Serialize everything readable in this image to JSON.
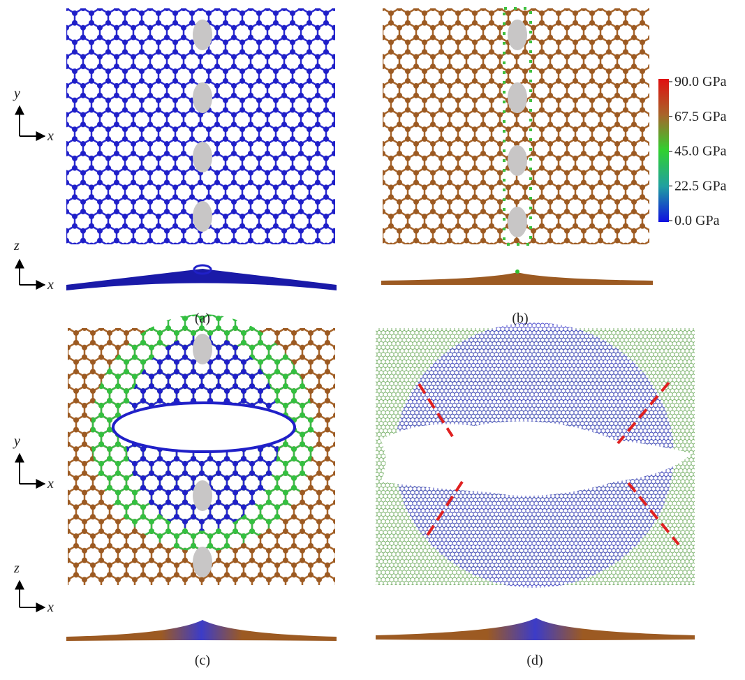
{
  "panels": [
    {
      "label": "(a)"
    },
    {
      "label": "(b)"
    },
    {
      "label": "(c)"
    },
    {
      "label": "(d)"
    }
  ],
  "axes": [
    {
      "vertical": "y",
      "horizontal": "x"
    },
    {
      "vertical": "z",
      "horizontal": "x"
    },
    {
      "vertical": "y",
      "horizontal": "x"
    },
    {
      "vertical": "z",
      "horizontal": "x"
    }
  ],
  "colorbar": {
    "labels": [
      "90.0 GPa",
      "67.5 GPa",
      "45.0 GPa",
      "22.5 GPa",
      "0.0 GPa"
    ]
  }
}
